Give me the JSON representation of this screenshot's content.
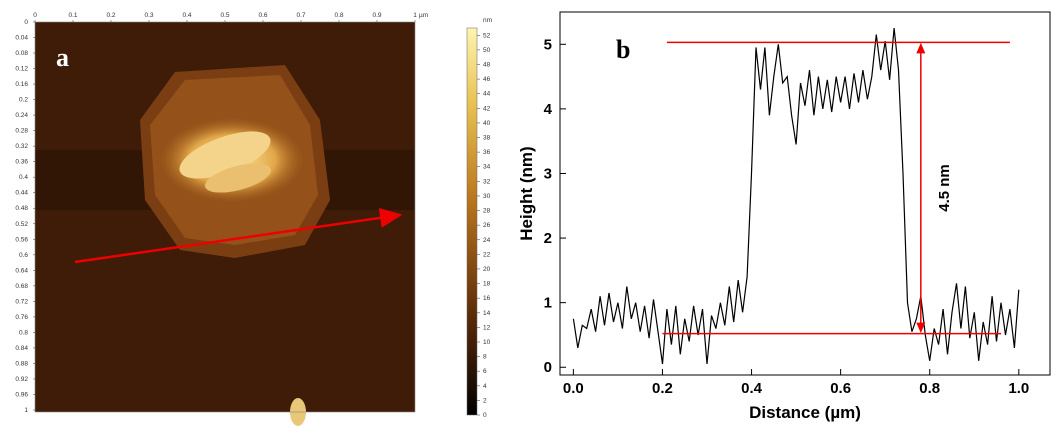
{
  "chart_data": [
    {
      "type": "image",
      "panel_label": "a",
      "xlim": [
        0,
        1
      ],
      "xticks": [
        0,
        0.1,
        0.2,
        0.3,
        0.4,
        0.5,
        0.6,
        0.7,
        0.8,
        0.9,
        1
      ],
      "x_unit": "µm",
      "ylim": [
        0,
        1
      ],
      "yticks": [
        0,
        0.04,
        0.08,
        0.12,
        0.16,
        0.2,
        0.24,
        0.28,
        0.32,
        0.36,
        0.4,
        0.44,
        0.48,
        0.52,
        0.56,
        0.6,
        0.64,
        0.68,
        0.72,
        0.76,
        0.8,
        0.84,
        0.88,
        0.92,
        0.96,
        1
      ],
      "clim": [
        0,
        53
      ],
      "cticks": [
        0,
        2,
        4,
        6,
        8,
        10,
        12,
        14,
        16,
        18,
        20,
        22,
        24,
        26,
        28,
        30,
        32,
        34,
        36,
        38,
        40,
        42,
        44,
        46,
        48,
        50,
        52
      ],
      "c_unit": "nm"
    },
    {
      "type": "line",
      "panel_label": "b",
      "xlabel": "Distance (µm)",
      "ylabel": "Height (nm)",
      "color": "#000000",
      "x": [
        0,
        0.01,
        0.02,
        0.03,
        0.04,
        0.05,
        0.06,
        0.07,
        0.08,
        0.09,
        0.1,
        0.11,
        0.12,
        0.13,
        0.14,
        0.15,
        0.16,
        0.17,
        0.18,
        0.19,
        0.2,
        0.21,
        0.22,
        0.23,
        0.24,
        0.25,
        0.26,
        0.27,
        0.28,
        0.29,
        0.3,
        0.31,
        0.32,
        0.33,
        0.34,
        0.35,
        0.36,
        0.37,
        0.38,
        0.39,
        0.4,
        0.41,
        0.42,
        0.43,
        0.44,
        0.45,
        0.46,
        0.47,
        0.48,
        0.49,
        0.5,
        0.51,
        0.52,
        0.53,
        0.54,
        0.55,
        0.56,
        0.57,
        0.58,
        0.59,
        0.6,
        0.61,
        0.62,
        0.63,
        0.64,
        0.65,
        0.66,
        0.67,
        0.68,
        0.69,
        0.7,
        0.71,
        0.72,
        0.73,
        0.74,
        0.75,
        0.76,
        0.77,
        0.78,
        0.79,
        0.8,
        0.81,
        0.82,
        0.83,
        0.84,
        0.85,
        0.86,
        0.87,
        0.88,
        0.89,
        0.9,
        0.91,
        0.92,
        0.93,
        0.94,
        0.95,
        0.96,
        0.97,
        0.98,
        0.99,
        1
      ],
      "values": [
        0.75,
        0.3,
        0.65,
        0.6,
        0.9,
        0.55,
        1.1,
        0.65,
        1.15,
        0.7,
        1.0,
        0.6,
        1.25,
        0.75,
        1.0,
        0.55,
        0.95,
        0.45,
        1.05,
        0.55,
        0.05,
        0.9,
        0.35,
        0.95,
        0.2,
        0.75,
        0.4,
        0.95,
        0.5,
        0.9,
        0.05,
        0.8,
        0.6,
        1.0,
        0.65,
        1.25,
        0.7,
        1.35,
        0.85,
        1.4,
        3.0,
        4.95,
        4.3,
        4.95,
        3.9,
        4.5,
        5.0,
        4.4,
        4.5,
        3.9,
        3.45,
        4.4,
        4.05,
        4.6,
        3.9,
        4.5,
        4.0,
        4.45,
        3.95,
        4.5,
        4.1,
        4.5,
        4.0,
        4.55,
        4.1,
        4.6,
        4.15,
        4.5,
        5.15,
        4.6,
        5.05,
        4.45,
        5.25,
        4.6,
        3.0,
        1.0,
        0.55,
        0.75,
        1.1,
        0.5,
        0.1,
        0.6,
        0.35,
        0.9,
        0.2,
        0.85,
        1.3,
        0.6,
        1.25,
        0.45,
        0.85,
        0.1,
        0.7,
        0.35,
        1.1,
        0.4,
        1.0,
        0.5,
        0.9,
        0.3,
        1.2
      ],
      "xlim": [
        -0.03,
        1.07
      ],
      "xticks": [
        {
          "value": 0,
          "label": "0.0"
        },
        {
          "value": 0.2,
          "label": "0.2"
        },
        {
          "value": 0.4,
          "label": "0.4"
        },
        {
          "value": 0.6,
          "label": "0.6"
        },
        {
          "value": 0.8,
          "label": "0.8"
        },
        {
          "value": 1,
          "label": "1.0"
        }
      ],
      "ylim": [
        -0.12,
        5.5
      ],
      "yticks": [
        0,
        1,
        2,
        3,
        4,
        5
      ],
      "reference_lines": [
        {
          "value": 5.03,
          "xrange": [
            0.21,
            0.98
          ]
        },
        {
          "value": 0.52,
          "xrange": [
            0.2,
            0.96
          ]
        }
      ],
      "annotation": {
        "text": "4.5 nm",
        "x": 0.78,
        "from": 0.52,
        "to": 5.03
      }
    }
  ]
}
